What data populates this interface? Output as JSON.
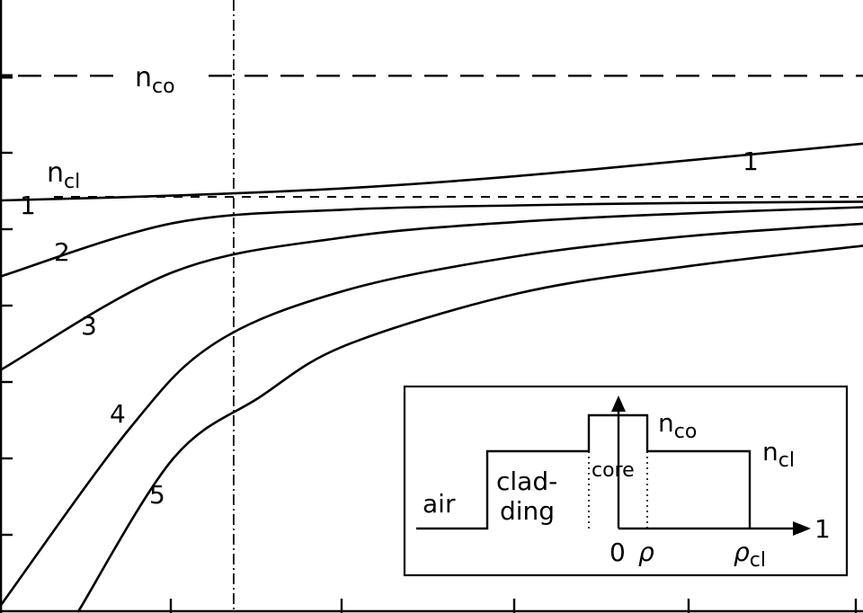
{
  "chart_data": {
    "type": "line",
    "title": "",
    "xlabel": "",
    "ylabel": "",
    "xlim": [
      0,
      1
    ],
    "ylim": [
      0,
      1
    ],
    "grid": false,
    "reference_lines": [
      {
        "name": "n_co",
        "base": "n",
        "subscript": "co",
        "y": 0.876
      },
      {
        "name": "n_cl",
        "base": "n",
        "subscript": "cl",
        "y": 0.678
      }
    ],
    "vertical_marker_x": 0.27,
    "series": [
      {
        "name": "1",
        "label": "1",
        "x": [
          0,
          0.2,
          0.4,
          0.6,
          0.8,
          1.0
        ],
        "values": [
          0.672,
          0.68,
          0.692,
          0.712,
          0.738,
          0.765
        ]
      },
      {
        "name": "2",
        "label": "2",
        "x": [
          0,
          0.2,
          0.4,
          0.6,
          0.8,
          1.0
        ],
        "values": [
          0.548,
          0.635,
          0.657,
          0.664,
          0.668,
          0.67
        ]
      },
      {
        "name": "3",
        "label": "3",
        "x": [
          0,
          0.2,
          0.4,
          0.6,
          0.8,
          1.0
        ],
        "values": [
          0.395,
          0.555,
          0.612,
          0.637,
          0.651,
          0.661
        ]
      },
      {
        "name": "4",
        "label": "4",
        "x": [
          0.0,
          0.15,
          0.25,
          0.4,
          0.6,
          0.8,
          1.0
        ],
        "values": [
          0.01,
          0.3,
          0.44,
          0.525,
          0.581,
          0.614,
          0.634
        ]
      },
      {
        "name": "5",
        "label": "5",
        "x": [
          0.09,
          0.2,
          0.3,
          0.4,
          0.6,
          0.8,
          1.0
        ],
        "values": [
          0.0,
          0.25,
          0.35,
          0.435,
          0.52,
          0.565,
          0.598
        ]
      }
    ],
    "inset": {
      "labels": {
        "air": "air",
        "cladding_line1": "clad-",
        "cladding_line2": "ding",
        "core": "core",
        "n_co_base": "n",
        "n_co_sub": "co",
        "n_cl_base": "n",
        "n_cl_sub": "cl",
        "zero": "0",
        "rho": "ρ",
        "rho_cl_base": "ρ",
        "rho_cl_sub": "cl",
        "one": "1"
      }
    }
  }
}
